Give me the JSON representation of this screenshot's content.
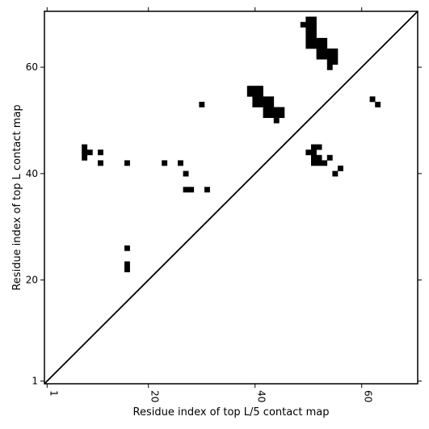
{
  "chart_data": {
    "type": "heatmap",
    "title": "",
    "xlabel": "Residue index of top L/5 contact map",
    "ylabel": "Residue index of top L contact map",
    "xlim": [
      0.5,
      70.5
    ],
    "ylim": [
      0.5,
      70.5
    ],
    "xticks": [
      1,
      20,
      40,
      60
    ],
    "yticks": [
      1,
      20,
      40,
      60
    ],
    "x_tick_labels": [
      "1",
      "20",
      "40",
      "60"
    ],
    "y_tick_labels": [
      "1",
      "20",
      "40",
      "60"
    ],
    "x_tick_label_rotation": 90,
    "diagonal": true,
    "grid": false,
    "cell_color": "#000000",
    "line_color": "#000000",
    "background": "#ffffff",
    "cells": [
      [
        8,
        43
      ],
      [
        8,
        44
      ],
      [
        8,
        45
      ],
      [
        9,
        44
      ],
      [
        11,
        44
      ],
      [
        11,
        42
      ],
      [
        16,
        42
      ],
      [
        16,
        26
      ],
      [
        16,
        23
      ],
      [
        16,
        22
      ],
      [
        23,
        42
      ],
      [
        26,
        42
      ],
      [
        27,
        40
      ],
      [
        27,
        37
      ],
      [
        28,
        37
      ],
      [
        31,
        37
      ],
      [
        30,
        53
      ],
      [
        39,
        56
      ],
      [
        40,
        56
      ],
      [
        41,
        56
      ],
      [
        39,
        55
      ],
      [
        40,
        55
      ],
      [
        41,
        55
      ],
      [
        40,
        54
      ],
      [
        41,
        54
      ],
      [
        42,
        54
      ],
      [
        43,
        54
      ],
      [
        40,
        53
      ],
      [
        41,
        53
      ],
      [
        42,
        53
      ],
      [
        43,
        53
      ],
      [
        42,
        52
      ],
      [
        43,
        52
      ],
      [
        44,
        52
      ],
      [
        45,
        52
      ],
      [
        42,
        51
      ],
      [
        43,
        51
      ],
      [
        44,
        51
      ],
      [
        45,
        51
      ],
      [
        44,
        50
      ],
      [
        50,
        69
      ],
      [
        51,
        69
      ],
      [
        49,
        68
      ],
      [
        50,
        68
      ],
      [
        51,
        68
      ],
      [
        50,
        67
      ],
      [
        51,
        67
      ],
      [
        50,
        66
      ],
      [
        51,
        66
      ],
      [
        50,
        65
      ],
      [
        51,
        65
      ],
      [
        52,
        65
      ],
      [
        53,
        65
      ],
      [
        50,
        64
      ],
      [
        51,
        64
      ],
      [
        52,
        64
      ],
      [
        53,
        64
      ],
      [
        52,
        63
      ],
      [
        53,
        63
      ],
      [
        54,
        63
      ],
      [
        55,
        63
      ],
      [
        52,
        62
      ],
      [
        53,
        62
      ],
      [
        54,
        62
      ],
      [
        55,
        62
      ],
      [
        54,
        61
      ],
      [
        55,
        61
      ],
      [
        54,
        60
      ],
      [
        62,
        54
      ],
      [
        63,
        53
      ],
      [
        51,
        45
      ],
      [
        52,
        45
      ],
      [
        50,
        44
      ],
      [
        51,
        44
      ],
      [
        51,
        43
      ],
      [
        52,
        43
      ],
      [
        54,
        43
      ],
      [
        51,
        42
      ],
      [
        52,
        42
      ],
      [
        53,
        42
      ],
      [
        56,
        41
      ],
      [
        55,
        40
      ]
    ]
  }
}
